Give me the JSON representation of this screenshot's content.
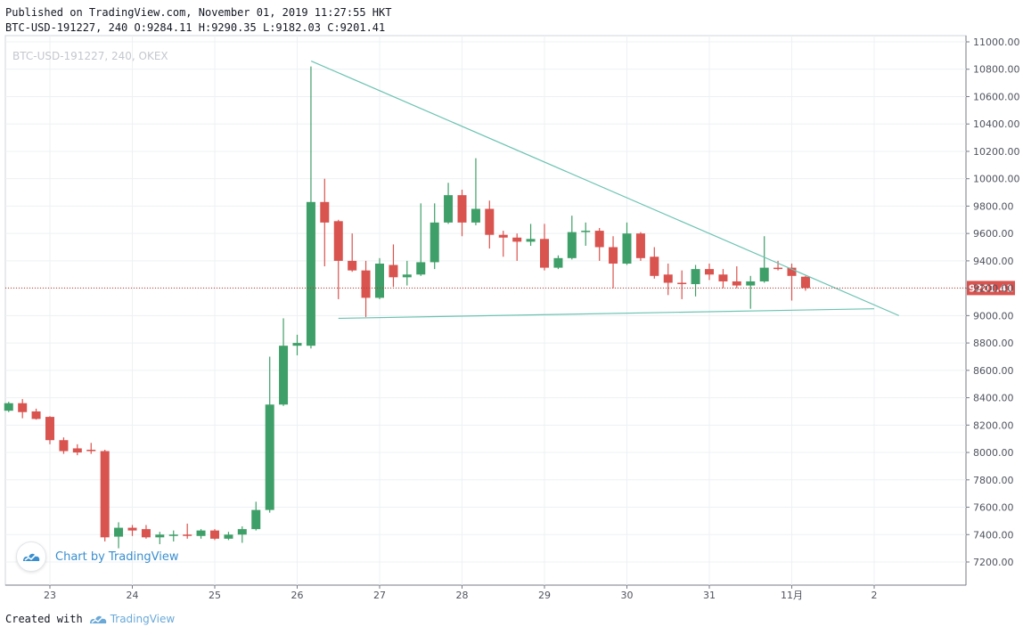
{
  "header": {
    "published": "Published on TradingView.com, November 01, 2019 11:27:55 HKT",
    "ohlc": "BTC-USD-191227, 240 O:9284.11 H:9290.35 L:9182.03 C:9201.41"
  },
  "watermark": "BTC-USD-191227, 240, OKEX",
  "badge_label": "Chart by TradingView",
  "footer": {
    "created_with": "Created with",
    "brand": "TradingView"
  },
  "colors": {
    "up": "#3f9f68",
    "down": "#d9534f",
    "trendline": "#6cc3b2",
    "price_line": "#c0392b",
    "grid": "#eef0f3"
  },
  "chart_data": {
    "type": "candlestick",
    "ylim": [
      7050,
      11050
    ],
    "y_ticks": [
      7200,
      7400,
      7600,
      7800,
      8000,
      8200,
      8400,
      8600,
      8800,
      9000,
      9200,
      9400,
      9600,
      9800,
      10000,
      10200,
      10400,
      10600,
      10800,
      11000
    ],
    "y_tick_labels": [
      "7200.00",
      "7400.00",
      "7600.00",
      "7800.00",
      "8000.00",
      "8200.00",
      "8400.00",
      "8600.00",
      "8800.00",
      "9000.00",
      "9200.00",
      "9400.00",
      "9600.00",
      "9800.00",
      "10000.00",
      "10200.00",
      "10400.00",
      "10600.00",
      "10800.00",
      "11000.00"
    ],
    "x_ticks": [
      {
        "label": "23",
        "day": 23
      },
      {
        "label": "24",
        "day": 24
      },
      {
        "label": "25",
        "day": 25
      },
      {
        "label": "26",
        "day": 26
      },
      {
        "label": "27",
        "day": 27
      },
      {
        "label": "28",
        "day": 28
      },
      {
        "label": "29",
        "day": 29
      },
      {
        "label": "30",
        "day": 30
      },
      {
        "label": "31",
        "day": 31
      },
      {
        "label": "11月",
        "day": 32
      },
      {
        "label": "2",
        "day": 33
      }
    ],
    "current_price": {
      "value": 9201.41,
      "label": "9201.41"
    },
    "candles": [
      {
        "d": 22.333,
        "o": 8303,
        "h": 8310,
        "l": 8298,
        "c": 8305
      },
      {
        "d": 22.5,
        "o": 8305,
        "h": 8370,
        "l": 8295,
        "c": 8360
      },
      {
        "d": 22.667,
        "o": 8360,
        "h": 8390,
        "l": 8250,
        "c": 8295
      },
      {
        "d": 22.833,
        "o": 8300,
        "h": 8320,
        "l": 8240,
        "c": 8245
      },
      {
        "d": 23.0,
        "o": 8260,
        "h": 8265,
        "l": 8060,
        "c": 8090
      },
      {
        "d": 23.167,
        "o": 8090,
        "h": 8110,
        "l": 7990,
        "c": 8010
      },
      {
        "d": 23.333,
        "o": 8030,
        "h": 8060,
        "l": 7980,
        "c": 8000
      },
      {
        "d": 23.5,
        "o": 8020,
        "h": 8070,
        "l": 7990,
        "c": 8010
      },
      {
        "d": 23.667,
        "o": 8010,
        "h": 8020,
        "l": 7350,
        "c": 7380
      },
      {
        "d": 23.833,
        "o": 7385,
        "h": 7490,
        "l": 7300,
        "c": 7450
      },
      {
        "d": 24.0,
        "o": 7450,
        "h": 7470,
        "l": 7390,
        "c": 7430
      },
      {
        "d": 24.167,
        "o": 7440,
        "h": 7470,
        "l": 7370,
        "c": 7380
      },
      {
        "d": 24.333,
        "o": 7380,
        "h": 7420,
        "l": 7330,
        "c": 7400
      },
      {
        "d": 24.5,
        "o": 7390,
        "h": 7430,
        "l": 7350,
        "c": 7400
      },
      {
        "d": 24.667,
        "o": 7400,
        "h": 7480,
        "l": 7370,
        "c": 7395
      },
      {
        "d": 24.833,
        "o": 7390,
        "h": 7440,
        "l": 7370,
        "c": 7430
      },
      {
        "d": 25.0,
        "o": 7430,
        "h": 7440,
        "l": 7360,
        "c": 7370
      },
      {
        "d": 25.167,
        "o": 7370,
        "h": 7420,
        "l": 7360,
        "c": 7400
      },
      {
        "d": 25.333,
        "o": 7400,
        "h": 7460,
        "l": 7340,
        "c": 7440
      },
      {
        "d": 25.5,
        "o": 7440,
        "h": 7640,
        "l": 7430,
        "c": 7580
      },
      {
        "d": 25.667,
        "o": 7580,
        "h": 8700,
        "l": 7560,
        "c": 8350
      },
      {
        "d": 25.833,
        "o": 8350,
        "h": 8980,
        "l": 8340,
        "c": 8780
      },
      {
        "d": 26.0,
        "o": 8780,
        "h": 8860,
        "l": 8710,
        "c": 8800
      },
      {
        "d": 26.167,
        "o": 8780,
        "h": 10820,
        "l": 8760,
        "c": 9830
      },
      {
        "d": 26.333,
        "o": 9830,
        "h": 10000,
        "l": 9360,
        "c": 9680
      },
      {
        "d": 26.5,
        "o": 9690,
        "h": 9700,
        "l": 9120,
        "c": 9400
      },
      {
        "d": 26.667,
        "o": 9400,
        "h": 9600,
        "l": 9320,
        "c": 9330
      },
      {
        "d": 26.833,
        "o": 9330,
        "h": 9400,
        "l": 8990,
        "c": 9130
      },
      {
        "d": 27.0,
        "o": 9130,
        "h": 9420,
        "l": 9120,
        "c": 9380
      },
      {
        "d": 27.167,
        "o": 9370,
        "h": 9520,
        "l": 9210,
        "c": 9280
      },
      {
        "d": 27.333,
        "o": 9280,
        "h": 9400,
        "l": 9220,
        "c": 9300
      },
      {
        "d": 27.5,
        "o": 9300,
        "h": 9820,
        "l": 9290,
        "c": 9390
      },
      {
        "d": 27.667,
        "o": 9390,
        "h": 9820,
        "l": 9340,
        "c": 9680
      },
      {
        "d": 27.833,
        "o": 9680,
        "h": 9970,
        "l": 9670,
        "c": 9880
      },
      {
        "d": 28.0,
        "o": 9880,
        "h": 9920,
        "l": 9580,
        "c": 9680
      },
      {
        "d": 28.167,
        "o": 9680,
        "h": 10150,
        "l": 9660,
        "c": 9780
      },
      {
        "d": 28.333,
        "o": 9780,
        "h": 9840,
        "l": 9490,
        "c": 9590
      },
      {
        "d": 28.5,
        "o": 9590,
        "h": 9620,
        "l": 9430,
        "c": 9570
      },
      {
        "d": 28.667,
        "o": 9570,
        "h": 9600,
        "l": 9400,
        "c": 9540
      },
      {
        "d": 28.833,
        "o": 9540,
        "h": 9670,
        "l": 9510,
        "c": 9560
      },
      {
        "d": 29.0,
        "o": 9560,
        "h": 9670,
        "l": 9330,
        "c": 9350
      },
      {
        "d": 29.167,
        "o": 9350,
        "h": 9440,
        "l": 9340,
        "c": 9420
      },
      {
        "d": 29.333,
        "o": 9420,
        "h": 9730,
        "l": 9410,
        "c": 9610
      },
      {
        "d": 29.5,
        "o": 9610,
        "h": 9680,
        "l": 9510,
        "c": 9620
      },
      {
        "d": 29.667,
        "o": 9620,
        "h": 9640,
        "l": 9400,
        "c": 9500
      },
      {
        "d": 29.833,
        "o": 9500,
        "h": 9580,
        "l": 9200,
        "c": 9380
      },
      {
        "d": 30.0,
        "o": 9380,
        "h": 9680,
        "l": 9370,
        "c": 9600
      },
      {
        "d": 30.167,
        "o": 9600,
        "h": 9610,
        "l": 9400,
        "c": 9420
      },
      {
        "d": 30.333,
        "o": 9430,
        "h": 9500,
        "l": 9270,
        "c": 9290
      },
      {
        "d": 30.5,
        "o": 9300,
        "h": 9380,
        "l": 9150,
        "c": 9240
      },
      {
        "d": 30.667,
        "o": 9240,
        "h": 9330,
        "l": 9120,
        "c": 9230
      },
      {
        "d": 30.833,
        "o": 9230,
        "h": 9370,
        "l": 9140,
        "c": 9340
      },
      {
        "d": 31.0,
        "o": 9340,
        "h": 9380,
        "l": 9260,
        "c": 9300
      },
      {
        "d": 31.167,
        "o": 9300,
        "h": 9340,
        "l": 9200,
        "c": 9250
      },
      {
        "d": 31.333,
        "o": 9250,
        "h": 9360,
        "l": 9200,
        "c": 9220
      },
      {
        "d": 31.5,
        "o": 9220,
        "h": 9290,
        "l": 9050,
        "c": 9250
      },
      {
        "d": 31.667,
        "o": 9250,
        "h": 9580,
        "l": 9240,
        "c": 9350
      },
      {
        "d": 31.833,
        "o": 9350,
        "h": 9400,
        "l": 9330,
        "c": 9340
      },
      {
        "d": 32.0,
        "o": 9350,
        "h": 9380,
        "l": 9110,
        "c": 9290
      },
      {
        "d": 32.167,
        "o": 9284.11,
        "h": 9290.35,
        "l": 9182.03,
        "c": 9201.41
      }
    ],
    "trendlines": [
      {
        "from": {
          "d": 26.17,
          "y": 10860
        },
        "to": {
          "d": 33.3,
          "y": 9000
        }
      },
      {
        "from": {
          "d": 26.5,
          "y": 8980
        },
        "to": {
          "d": 33.0,
          "y": 9050
        }
      }
    ]
  }
}
